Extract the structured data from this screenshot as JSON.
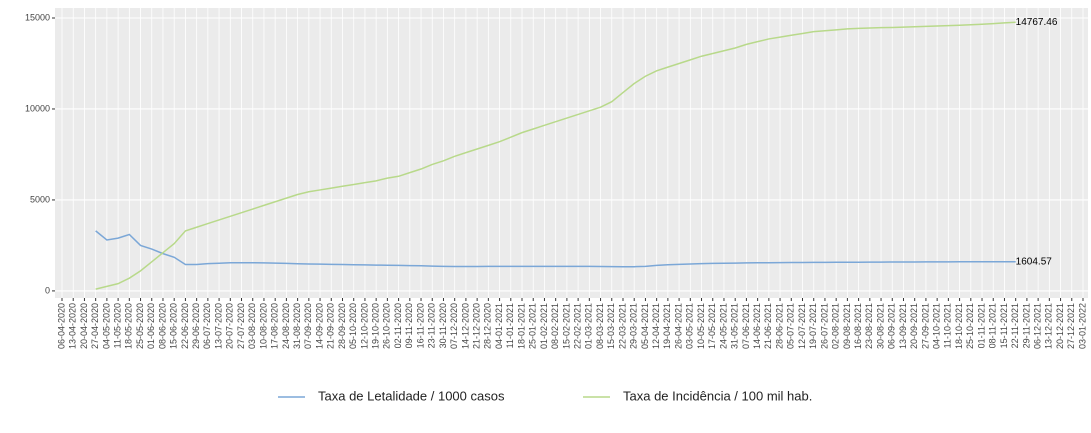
{
  "chart_data": {
    "type": "line",
    "categories": [
      "06-04-2020",
      "13-04-2020",
      "20-04-2020",
      "27-04-2020",
      "04-05-2020",
      "11-05-2020",
      "18-05-2020",
      "25-05-2020",
      "01-06-2020",
      "08-06-2020",
      "15-06-2020",
      "22-06-2020",
      "29-06-2020",
      "06-07-2020",
      "13-07-2020",
      "20-07-2020",
      "27-07-2020",
      "03-08-2020",
      "10-08-2020",
      "17-08-2020",
      "24-08-2020",
      "31-08-2020",
      "07-09-2020",
      "14-09-2020",
      "21-09-2020",
      "28-09-2020",
      "05-10-2020",
      "12-10-2020",
      "19-10-2020",
      "26-10-2020",
      "02-11-2020",
      "09-11-2020",
      "16-11-2020",
      "23-11-2020",
      "30-11-2020",
      "07-12-2020",
      "14-12-2020",
      "21-12-2020",
      "28-12-2020",
      "04-01-2021",
      "11-01-2021",
      "18-01-2021",
      "25-01-2021",
      "01-02-2021",
      "08-02-2021",
      "15-02-2021",
      "22-02-2021",
      "01-03-2021",
      "08-03-2021",
      "15-03-2021",
      "22-03-2021",
      "29-03-2021",
      "05-04-2021",
      "12-04-2021",
      "19-04-2021",
      "26-04-2021",
      "03-05-2021",
      "10-05-2021",
      "17-05-2021",
      "24-05-2021",
      "31-05-2021",
      "07-06-2021",
      "14-06-2021",
      "21-06-2021",
      "28-06-2021",
      "05-07-2021",
      "12-07-2021",
      "19-07-2021",
      "26-07-2021",
      "02-08-2021",
      "09-08-2021",
      "16-08-2021",
      "23-08-2021",
      "30-08-2021",
      "06-09-2021",
      "13-09-2021",
      "20-09-2021",
      "27-09-2021",
      "04-10-2021",
      "11-10-2021",
      "18-10-2021",
      "25-10-2021",
      "01-11-2021",
      "08-11-2021",
      "15-11-2021",
      "22-11-2021",
      "29-11-2021",
      "06-12-2021",
      "13-12-2021",
      "20-12-2021",
      "27-12-2021",
      "03-01-2022"
    ],
    "series": [
      {
        "name": "Taxa de Letalidade / 1000 casos",
        "color": "#7ba7d7",
        "values": [
          null,
          null,
          null,
          3300,
          2800,
          2900,
          3100,
          2500,
          2300,
          2050,
          1850,
          1450,
          1450,
          1500,
          1520,
          1550,
          1550,
          1550,
          1540,
          1530,
          1510,
          1490,
          1480,
          1470,
          1460,
          1450,
          1440,
          1430,
          1420,
          1410,
          1400,
          1390,
          1380,
          1360,
          1350,
          1340,
          1340,
          1340,
          1345,
          1350,
          1350,
          1350,
          1350,
          1350,
          1350,
          1350,
          1350,
          1345,
          1340,
          1335,
          1330,
          1330,
          1350,
          1400,
          1440,
          1460,
          1480,
          1500,
          1510,
          1520,
          1530,
          1540,
          1545,
          1550,
          1555,
          1560,
          1563,
          1566,
          1569,
          1572,
          1575,
          1578,
          1581,
          1584,
          1587,
          1590,
          1592,
          1594,
          1596,
          1598,
          1600,
          1601,
          1602,
          1603,
          1604,
          1604.57,
          null,
          null,
          null,
          null,
          null,
          null
        ]
      },
      {
        "name": "Taxa de Incidência / 100 mil hab.",
        "color": "#b8d98a",
        "values": [
          null,
          null,
          null,
          100,
          250,
          400,
          700,
          1100,
          1600,
          2100,
          2600,
          3300,
          3500,
          3700,
          3900,
          4100,
          4300,
          4500,
          4700,
          4900,
          5100,
          5300,
          5450,
          5550,
          5650,
          5750,
          5850,
          5950,
          6050,
          6200,
          6300,
          6500,
          6700,
          6950,
          7150,
          7400,
          7600,
          7800,
          8000,
          8200,
          8450,
          8700,
          8900,
          9100,
          9300,
          9500,
          9700,
          9900,
          10100,
          10400,
          10900,
          11400,
          11800,
          12100,
          12300,
          12500,
          12700,
          12900,
          13050,
          13200,
          13350,
          13550,
          13700,
          13850,
          13950,
          14050,
          14150,
          14250,
          14300,
          14350,
          14400,
          14430,
          14450,
          14470,
          14480,
          14500,
          14520,
          14540,
          14560,
          14580,
          14600,
          14630,
          14660,
          14690,
          14730,
          14767.46,
          null,
          null,
          null,
          null,
          null,
          null
        ]
      }
    ],
    "ylim": [
      -390,
      15550
    ],
    "yticks": [
      0,
      5000,
      10000,
      15000
    ],
    "grid": true,
    "legend": "bottom"
  }
}
